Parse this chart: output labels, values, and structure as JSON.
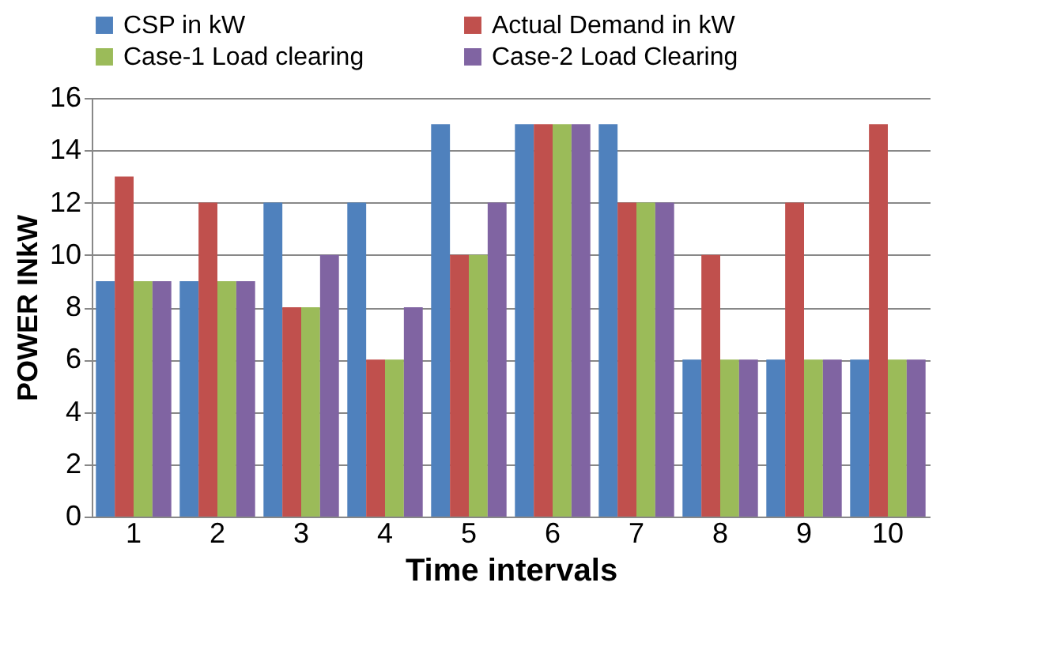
{
  "chart_data": {
    "type": "bar",
    "xlabel": "Time intervals",
    "ylabel": "POWER INkW",
    "categories": [
      "1",
      "2",
      "3",
      "4",
      "5",
      "6",
      "7",
      "8",
      "9",
      "10"
    ],
    "series": [
      {
        "name": "CSP in kW",
        "color": "#4f81bd",
        "values": [
          9,
          9,
          12,
          12,
          15,
          15,
          15,
          6,
          6,
          6
        ]
      },
      {
        "name": "Actual Demand in kW",
        "color": "#c0504d",
        "values": [
          13,
          12,
          8,
          6,
          10,
          15,
          12,
          10,
          12,
          15
        ]
      },
      {
        "name": "Case-1 Load clearing",
        "color": "#9bbb59",
        "values": [
          9,
          9,
          8,
          6,
          10,
          15,
          12,
          6,
          6,
          6
        ]
      },
      {
        "name": "Case-2 Load Clearing",
        "color": "#8064a2",
        "values": [
          9,
          9,
          10,
          8,
          12,
          15,
          12,
          6,
          6,
          6
        ]
      }
    ],
    "ylim": [
      0,
      16
    ],
    "yticks": [
      0,
      2,
      4,
      6,
      8,
      10,
      12,
      14,
      16
    ],
    "grid": "y",
    "legend": "top"
  }
}
